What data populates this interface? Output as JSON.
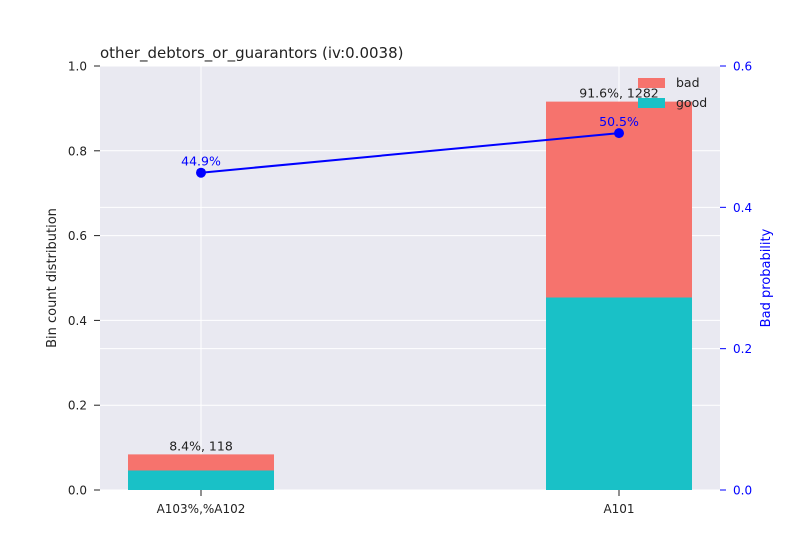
{
  "chart_data": {
    "type": "bar",
    "title": "other_debtors_or_guarantors  (iv:0.0038)",
    "categories": [
      "A103%,%A102",
      "A101"
    ],
    "ylabel": "Bin count distribution",
    "y2label": "Bad probability",
    "ylim": [
      0,
      1.0
    ],
    "y2lim": [
      0,
      0.6
    ],
    "yticks": [
      "0.0",
      "0.2",
      "0.4",
      "0.6",
      "0.8",
      "1.0"
    ],
    "y2ticks": [
      "0.0",
      "0.2",
      "0.4",
      "0.6"
    ],
    "series": [
      {
        "name": "good",
        "values": [
          0.046,
          0.454
        ]
      },
      {
        "name": "bad",
        "values": [
          0.038,
          0.462
        ]
      }
    ],
    "bar_labels": [
      "8.4%, 118",
      "91.6%, 1282"
    ],
    "bad_probability": {
      "values": [
        0.449,
        0.505
      ],
      "labels": [
        "44.9%",
        "50.5%"
      ]
    },
    "legend": {
      "position": "top-right",
      "entries": [
        "bad",
        "good"
      ]
    },
    "grid": true,
    "colors": {
      "good": "#19c1c7",
      "bad": "#f6736d",
      "line": "#0000ff",
      "background": "#e9e9f1",
      "grid": "#ffffff"
    }
  }
}
